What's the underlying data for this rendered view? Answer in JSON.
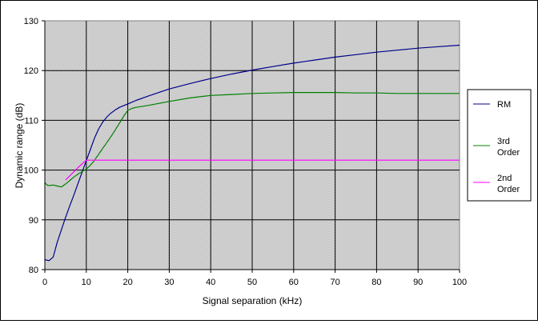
{
  "chart_data": {
    "type": "line",
    "title": "",
    "xlabel": "Signal separation (kHz)",
    "ylabel": "Dynamic range (dB)",
    "xlim": [
      0,
      100
    ],
    "ylim": [
      80,
      130
    ],
    "xticks": [
      0,
      10,
      20,
      30,
      40,
      50,
      60,
      70,
      80,
      90,
      100
    ],
    "yticks": [
      80,
      90,
      100,
      110,
      120,
      130
    ],
    "grid": true,
    "legend_position": "right",
    "plot_background": "#c0c0c0",
    "series": [
      {
        "name": "RM",
        "color": "#00008b",
        "x": [
          0,
          1,
          2,
          3,
          4,
          5,
          6,
          7,
          8,
          9,
          10,
          11,
          12,
          13,
          14,
          15,
          16,
          17,
          18,
          20,
          22,
          25,
          30,
          35,
          40,
          45,
          50,
          55,
          60,
          65,
          70,
          75,
          80,
          85,
          90,
          95,
          100
        ],
        "y": [
          82,
          81.8,
          82.5,
          85.5,
          88,
          90.5,
          92.8,
          95,
          97.3,
          99.6,
          101.9,
          104.2,
          106.5,
          108.3,
          109.7,
          110.7,
          111.5,
          112.1,
          112.6,
          113.3,
          114,
          114.9,
          116.3,
          117.4,
          118.4,
          119.3,
          120.1,
          120.8,
          121.5,
          122.1,
          122.7,
          123.2,
          123.7,
          124.1,
          124.5,
          124.8,
          125.1
        ]
      },
      {
        "name": "3rd Order",
        "color": "#008000",
        "x": [
          0,
          0.5,
          1,
          2,
          3,
          4,
          5,
          6,
          7,
          8,
          9,
          10,
          11,
          12,
          13,
          14,
          15,
          16,
          17,
          18,
          19,
          20,
          21,
          22,
          25,
          30,
          35,
          40,
          45,
          50,
          55,
          60,
          65,
          70,
          75,
          80,
          85,
          90,
          95,
          100
        ],
        "y": [
          97.5,
          97,
          96.9,
          97,
          96.8,
          96.6,
          97.2,
          97.9,
          98.6,
          99.2,
          99.7,
          100.2,
          101,
          102,
          103.2,
          104.4,
          105.6,
          106.8,
          108.1,
          109.4,
          110.8,
          112,
          112.4,
          112.6,
          113,
          113.8,
          114.5,
          115,
          115.2,
          115.4,
          115.5,
          115.6,
          115.6,
          115.6,
          115.5,
          115.5,
          115.4,
          115.4,
          115.4,
          115.4
        ]
      },
      {
        "name": "2nd Order",
        "color": "#ff00ff",
        "x": [
          5,
          8,
          10,
          20,
          40,
          60,
          80,
          100
        ],
        "y": [
          98,
          100.5,
          102,
          102,
          102,
          102,
          102,
          102
        ]
      }
    ]
  }
}
